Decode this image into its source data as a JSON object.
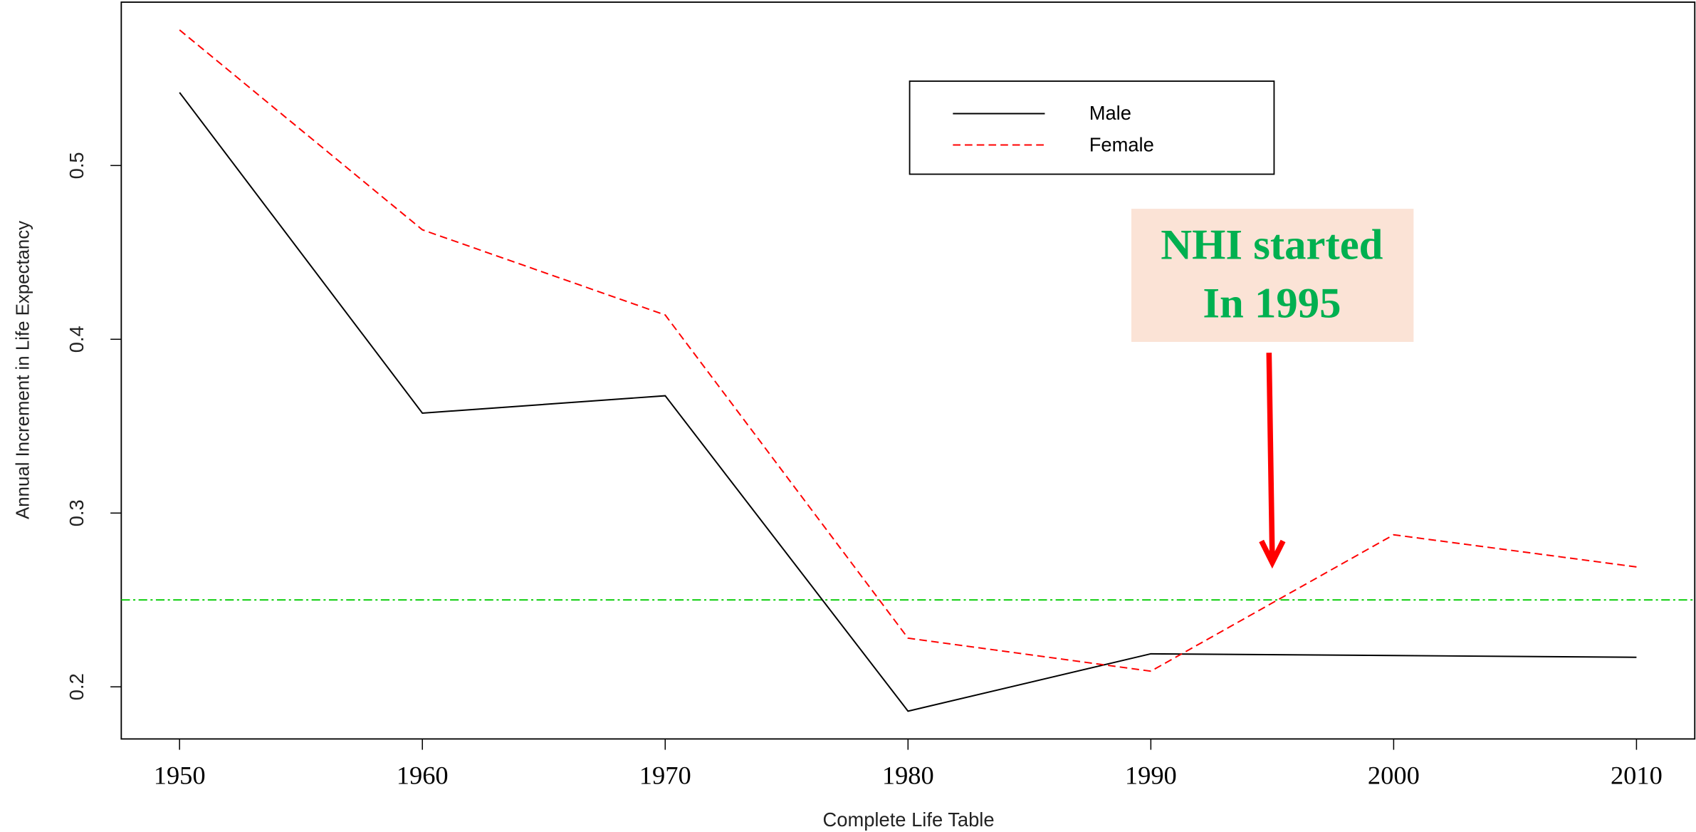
{
  "chart_data": {
    "type": "line",
    "x": [
      1950,
      1960,
      1970,
      1980,
      1990,
      2000,
      2010
    ],
    "series": [
      {
        "name": "Male",
        "color": "#000000",
        "dash": "solid",
        "values": [
          0.542,
          0.3575,
          0.3675,
          0.186,
          0.219,
          0.218,
          0.217
        ]
      },
      {
        "name": "Female",
        "color": "#ff0000",
        "dash": "dashed",
        "values": [
          0.578,
          0.463,
          0.414,
          0.228,
          0.209,
          0.2875,
          0.269
        ]
      }
    ],
    "xlim": [
      1947.6,
      2012.4
    ],
    "ylim": [
      0.17,
      0.594
    ],
    "xticks": [
      1950,
      1960,
      1970,
      1980,
      1990,
      2000,
      2010
    ],
    "yticks": [
      0.2,
      0.3,
      0.4,
      0.5
    ],
    "xlabel": "Complete Life Table",
    "ylabel": "Annual Increment in Life Expectancy",
    "hline": {
      "value": 0.25,
      "color": "#00cc00"
    },
    "legend": "top",
    "annotation": {
      "lines": [
        "NHI started",
        "In 1995"
      ],
      "x": 1995,
      "color": "#00b050",
      "box_color": "#fbe3d6",
      "arrow_color": "#ff0000"
    }
  }
}
